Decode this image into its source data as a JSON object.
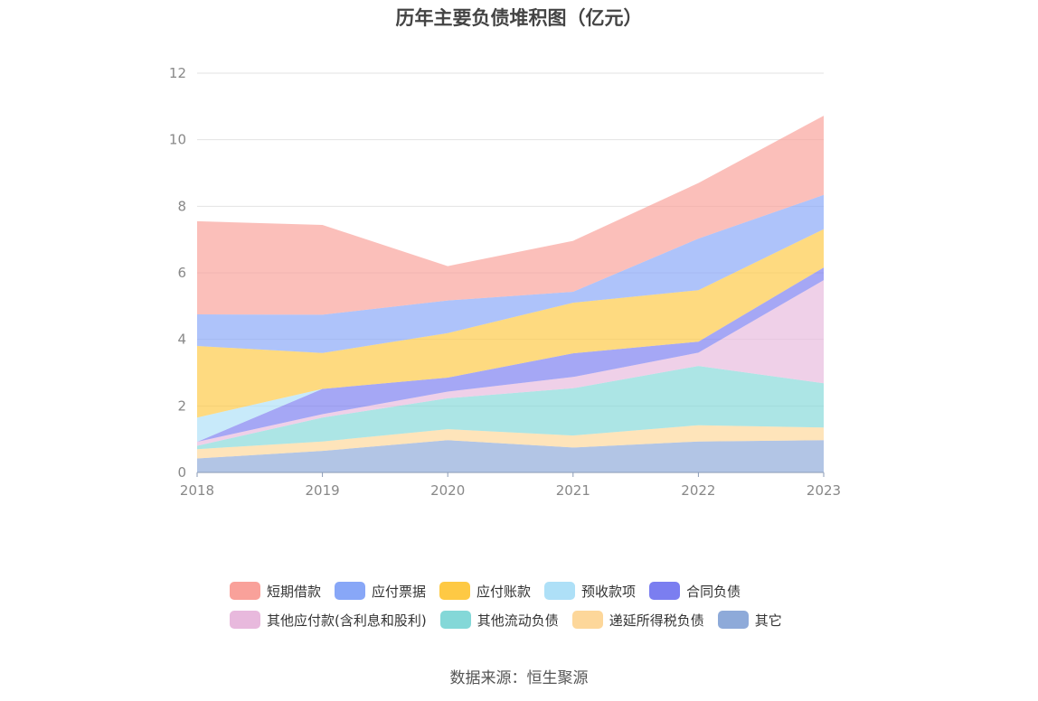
{
  "title": "历年主要负债堆积图（亿元）",
  "source": "数据来源：恒生聚源",
  "chart_data": {
    "type": "area",
    "stacked": true,
    "title": "历年主要负债堆积图（亿元）",
    "x": [
      "2018",
      "2019",
      "2020",
      "2021",
      "2022",
      "2023"
    ],
    "ylim": [
      0,
      12
    ],
    "yticks": [
      "0",
      "2",
      "4",
      "6",
      "8",
      "10",
      "12"
    ],
    "grid": true,
    "legend_position": "bottom",
    "series": [
      {
        "name": "其它",
        "color": "#8eaad9",
        "values": [
          0.42,
          0.65,
          0.97,
          0.75,
          0.93,
          0.97
        ]
      },
      {
        "name": "递延所得税负债",
        "color": "#fdd79a",
        "values": [
          0.28,
          0.28,
          0.33,
          0.36,
          0.49,
          0.38
        ]
      },
      {
        "name": "其他流动负债",
        "color": "#84d8d8",
        "values": [
          0.1,
          0.72,
          0.93,
          1.42,
          1.78,
          1.33
        ]
      },
      {
        "name": "其他应付款(含利息和股利)",
        "color": "#e8b9dd",
        "values": [
          0.12,
          0.1,
          0.2,
          0.34,
          0.4,
          3.1
        ]
      },
      {
        "name": "合同负债",
        "color": "#7b7ef0",
        "values": [
          0.0,
          0.76,
          0.42,
          0.71,
          0.33,
          0.38
        ]
      },
      {
        "name": "预收款项",
        "color": "#aee0f7",
        "values": [
          0.73,
          0.0,
          0.0,
          0.0,
          0.0,
          0.0
        ]
      },
      {
        "name": "应付账款",
        "color": "#fec944",
        "values": [
          2.15,
          1.08,
          1.34,
          1.52,
          1.55,
          1.15
        ]
      },
      {
        "name": "应付票据",
        "color": "#88a7f7",
        "values": [
          0.95,
          1.15,
          0.98,
          0.33,
          1.55,
          1.03
        ]
      },
      {
        "name": "短期借款",
        "color": "#f9a19a",
        "values": [
          2.8,
          2.7,
          1.03,
          1.53,
          1.67,
          2.38
        ]
      }
    ]
  },
  "legend": [
    [
      {
        "name": "短期借款",
        "color": "#f9a19a"
      },
      {
        "name": "应付票据",
        "color": "#88a7f7"
      },
      {
        "name": "应付账款",
        "color": "#fec944"
      },
      {
        "name": "预收款项",
        "color": "#aee0f7"
      },
      {
        "name": "合同负债",
        "color": "#7b7ef0"
      }
    ],
    [
      {
        "name": "其他应付款(含利息和股利)",
        "color": "#e8b9dd"
      },
      {
        "name": "其他流动负债",
        "color": "#84d8d8"
      },
      {
        "name": "递延所得税负债",
        "color": "#fdd79a"
      },
      {
        "name": "其它",
        "color": "#8eaad9"
      }
    ]
  ]
}
